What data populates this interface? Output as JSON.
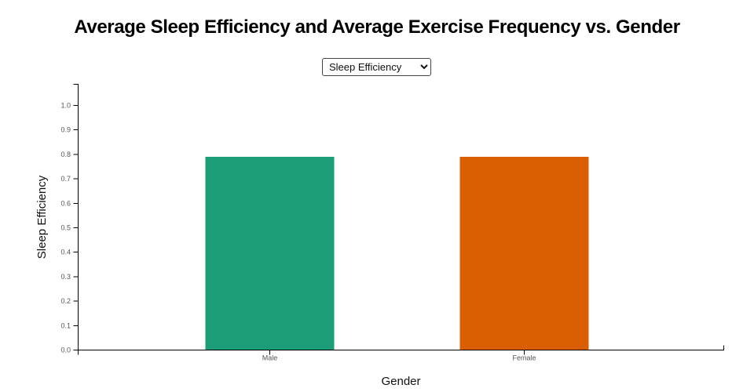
{
  "header": {
    "title": "Average Sleep Efficiency and Average Exercise Frequency vs. Gender"
  },
  "controls": {
    "metric_select": {
      "value": "Sleep Efficiency",
      "options": [
        "Sleep Efficiency"
      ]
    }
  },
  "chart_data": {
    "type": "bar",
    "title": "Average Sleep Efficiency and Average Exercise Frequency vs. Gender",
    "categories": [
      "Male",
      "Female"
    ],
    "values": [
      0.79,
      0.79
    ],
    "xlabel": "Gender",
    "ylabel": "Sleep Efficiency",
    "ylim": [
      0,
      1.09
    ],
    "yticks": [
      "0.0",
      "0.1",
      "0.2",
      "0.3",
      "0.4",
      "0.5",
      "0.6",
      "0.7",
      "0.8",
      "0.9",
      "1.0"
    ],
    "grid": false,
    "legend": null,
    "colors": {
      "bars": [
        "#1b9e77",
        "#d95f02"
      ],
      "axis": "#000000",
      "tick_labels": "#555555",
      "axis_labels": "#111111"
    }
  }
}
